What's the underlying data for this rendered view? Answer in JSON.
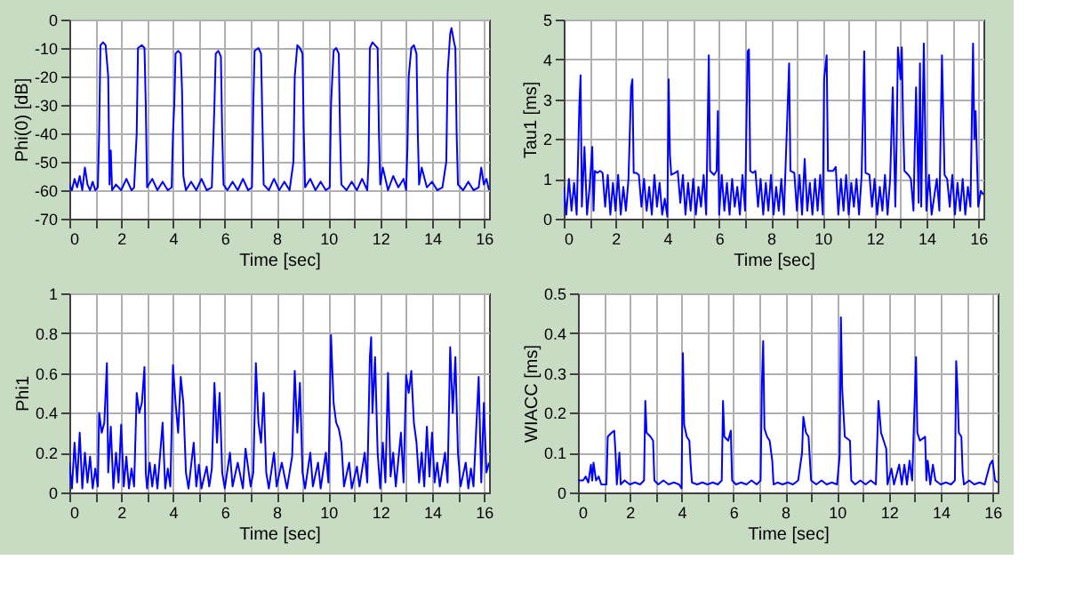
{
  "chart_data": [
    {
      "type": "line",
      "xlabel": "Time [sec]",
      "ylabel": "Phi(0) [dB]",
      "xlim": [
        0,
        16.2
      ],
      "ylim": [
        -70,
        0
      ],
      "grid": true,
      "xticks": [
        0,
        {
          "value": 1,
          "label": null
        },
        2,
        {
          "value": 3,
          "label": null
        },
        4,
        {
          "value": 5,
          "label": null
        },
        6,
        {
          "value": 7,
          "label": null
        },
        8,
        {
          "value": 9,
          "label": null
        },
        10,
        {
          "value": 11,
          "label": null
        },
        12,
        {
          "value": 13,
          "label": null
        },
        14,
        {
          "value": 15,
          "label": null
        },
        16
      ],
      "yticks": [
        -70,
        -60,
        -50,
        -40,
        -30,
        -20,
        -10,
        0
      ],
      "series": [
        {
          "color": "#0000ff",
          "x": [
            0,
            0.1,
            0.2,
            0.3,
            0.4,
            0.5,
            0.6,
            0.7,
            0.8,
            0.9,
            1.0,
            1.1,
            1.15,
            1.2,
            1.3,
            1.4,
            1.5,
            1.55,
            1.6,
            1.65,
            1.8,
            2.0,
            2.2,
            2.4,
            2.5,
            2.6,
            2.65,
            2.8,
            2.9,
            2.95,
            3.0,
            3.2,
            3.4,
            3.6,
            3.8,
            3.95,
            4.0,
            4.05,
            4.1,
            4.2,
            4.3,
            4.35,
            4.4,
            4.5,
            4.7,
            4.9,
            5.1,
            5.3,
            5.5,
            5.6,
            5.65,
            5.75,
            5.85,
            5.9,
            5.95,
            6.1,
            6.3,
            6.5,
            6.7,
            6.9,
            7.05,
            7.1,
            7.15,
            7.3,
            7.4,
            7.45,
            7.5,
            7.7,
            7.9,
            8.1,
            8.3,
            8.5,
            8.65,
            8.7,
            8.8,
            8.9,
            9.0,
            9.05,
            9.1,
            9.3,
            9.5,
            9.7,
            9.9,
            10.05,
            10.1,
            10.2,
            10.3,
            10.4,
            10.45,
            10.5,
            10.7,
            10.9,
            11.1,
            11.3,
            11.5,
            11.55,
            11.6,
            11.7,
            11.8,
            11.9,
            11.95,
            12.0,
            12.1,
            12.3,
            12.5,
            12.7,
            12.9,
            13.0,
            13.05,
            13.1,
            13.2,
            13.3,
            13.4,
            13.45,
            13.5,
            13.6,
            13.8,
            14.0,
            14.2,
            14.4,
            14.55,
            14.6,
            14.7,
            14.75,
            14.85,
            14.9,
            14.95,
            15.0,
            15.2,
            15.4,
            15.6,
            15.8,
            15.9,
            16.0,
            16.1,
            16.2
          ],
          "values": [
            -58,
            -60,
            -56,
            -59,
            -55,
            -60,
            -52,
            -58,
            -60,
            -57,
            -60,
            -59,
            -40,
            -9,
            -8,
            -9,
            -20,
            -58,
            -46,
            -60,
            -58,
            -60,
            -56,
            -60,
            -59,
            -40,
            -10,
            -9,
            -10,
            -30,
            -59,
            -56,
            -60,
            -57,
            -60,
            -59,
            -40,
            -30,
            -12,
            -11,
            -12,
            -25,
            -55,
            -60,
            -57,
            -60,
            -56,
            -60,
            -59,
            -30,
            -12,
            -11,
            -13,
            -40,
            -58,
            -60,
            -57,
            -60,
            -56,
            -60,
            -59,
            -30,
            -11,
            -10,
            -12,
            -35,
            -58,
            -60,
            -56,
            -60,
            -57,
            -60,
            -50,
            -20,
            -9,
            -10,
            -12,
            -40,
            -59,
            -56,
            -60,
            -57,
            -60,
            -59,
            -30,
            -11,
            -10,
            -12,
            -40,
            -58,
            -60,
            -57,
            -60,
            -56,
            -60,
            -50,
            -10,
            -8,
            -9,
            -10,
            -40,
            -58,
            -52,
            -60,
            -55,
            -59,
            -56,
            -60,
            -45,
            -20,
            -10,
            -9,
            -12,
            -40,
            -58,
            -52,
            -59,
            -57,
            -60,
            -59,
            -50,
            -19,
            -5,
            -3,
            -8,
            -10,
            -40,
            -58,
            -60,
            -57,
            -60,
            -59,
            -52,
            -58,
            -56,
            -60
          ]
        }
      ]
    },
    {
      "type": "line",
      "xlabel": "Time [sec]",
      "ylabel": "Tau1 [ms]",
      "xlim": [
        0,
        16.2
      ],
      "ylim": [
        0,
        5
      ],
      "grid": true,
      "xticks": [
        0,
        {
          "value": 1,
          "label": null
        },
        2,
        {
          "value": 3,
          "label": null
        },
        4,
        {
          "value": 5,
          "label": null
        },
        6,
        {
          "value": 7,
          "label": null
        },
        8,
        {
          "value": 9,
          "label": null
        },
        10,
        {
          "value": 11,
          "label": null
        },
        12,
        {
          "value": 13,
          "label": null
        },
        14,
        {
          "value": 15,
          "label": null
        },
        16
      ],
      "yticks": [
        0,
        1,
        2,
        3,
        4,
        5
      ],
      "series": [
        {
          "color": "#0000ff",
          "x": [
            0,
            0.1,
            0.2,
            0.3,
            0.4,
            0.5,
            0.6,
            0.65,
            0.7,
            0.8,
            0.9,
            1.0,
            1.1,
            1.15,
            1.2,
            1.3,
            1.4,
            1.5,
            1.6,
            1.7,
            1.8,
            1.9,
            2.0,
            2.1,
            2.2,
            2.3,
            2.4,
            2.5,
            2.6,
            2.65,
            2.7,
            2.8,
            2.9,
            3.0,
            3.1,
            3.2,
            3.3,
            3.4,
            3.5,
            3.6,
            3.7,
            3.8,
            3.9,
            4.0,
            4.05,
            4.1,
            4.15,
            4.3,
            4.4,
            4.5,
            4.6,
            4.7,
            4.8,
            4.9,
            5.0,
            5.1,
            5.2,
            5.3,
            5.4,
            5.5,
            5.6,
            5.65,
            5.8,
            5.9,
            5.95,
            6.0,
            6.1,
            6.2,
            6.3,
            6.4,
            6.5,
            6.6,
            6.7,
            6.8,
            6.9,
            7.0,
            7.1,
            7.15,
            7.2,
            7.3,
            7.4,
            7.5,
            7.6,
            7.7,
            7.8,
            7.9,
            8.0,
            8.1,
            8.2,
            8.3,
            8.4,
            8.5,
            8.7,
            8.75,
            8.9,
            9.0,
            9.1,
            9.2,
            9.3,
            9.4,
            9.5,
            9.6,
            9.7,
            9.8,
            9.9,
            10.0,
            10.05,
            10.15,
            10.2,
            10.4,
            10.5,
            10.6,
            10.7,
            10.8,
            10.9,
            11.0,
            11.1,
            11.2,
            11.3,
            11.4,
            11.5,
            11.6,
            11.65,
            11.8,
            11.9,
            12.0,
            12.1,
            12.2,
            12.3,
            12.4,
            12.5,
            12.6,
            12.7,
            12.8,
            12.85,
            12.9,
            13.0,
            13.05,
            13.1,
            13.15,
            13.3,
            13.4,
            13.5,
            13.6,
            13.7,
            13.75,
            13.8,
            13.9,
            14.0,
            14.1,
            14.2,
            14.4,
            14.5,
            14.6,
            14.65,
            14.7,
            14.8,
            14.9,
            15.0,
            15.1,
            15.2,
            15.3,
            15.4,
            15.5,
            15.6,
            15.7,
            15.8,
            15.85,
            15.9,
            16.0,
            16.1,
            16.2
          ],
          "values": [
            0.8,
            0.1,
            1.0,
            0.2,
            0.9,
            0.1,
            2.8,
            3.6,
            0.3,
            1.8,
            0.1,
            0.8,
            1.8,
            0.2,
            1.2,
            1.15,
            1.2,
            1.15,
            0.3,
            1.1,
            0.1,
            0.9,
            0.2,
            1.1,
            0.1,
            0.8,
            0.2,
            1.0,
            3.3,
            3.5,
            1.15,
            1.15,
            1.1,
            0.3,
            1.0,
            0.2,
            0.8,
            0.1,
            1.1,
            0.3,
            0.9,
            0.1,
            0.5,
            0.05,
            3.5,
            1.6,
            1.1,
            1.15,
            1.2,
            0.4,
            1.1,
            0.1,
            0.9,
            0.2,
            1.0,
            0.1,
            0.8,
            0.3,
            1.1,
            0.1,
            4.1,
            1.2,
            1.1,
            1.2,
            2.7,
            0.1,
            1.1,
            0.2,
            0.9,
            0.1,
            1.0,
            0.3,
            0.8,
            0.1,
            1.1,
            0.2,
            4.2,
            4.25,
            1.2,
            1.15,
            1.2,
            0.3,
            1.0,
            0.1,
            0.9,
            0.2,
            1.1,
            0.1,
            0.8,
            0.2,
            1.0,
            0.1,
            3.9,
            1.2,
            1.15,
            0.2,
            1.1,
            0.1,
            1.5,
            0.2,
            0.9,
            0.1,
            1.0,
            0.2,
            1.1,
            0.1,
            3.5,
            4.1,
            1.2,
            1.2,
            1.3,
            0.1,
            1.0,
            0.2,
            1.1,
            0.1,
            0.9,
            0.3,
            1.0,
            0.1,
            1.1,
            4.2,
            1.15,
            1.1,
            0.3,
            1.0,
            0.1,
            0.8,
            0.2,
            1.1,
            0.1,
            1.0,
            3.3,
            0.3,
            1.9,
            4.3,
            3.5,
            4.3,
            2.4,
            1.2,
            1.1,
            1.0,
            0.2,
            3.3,
            0.4,
            3.9,
            0.3,
            4.4,
            0.2,
            1.1,
            0.1,
            1.0,
            0.2,
            4.1,
            2.6,
            1.1,
            1.0,
            0.3,
            1.1,
            0.1,
            0.9,
            0.2,
            1.0,
            0.1,
            0.8,
            0.3,
            4.4,
            2.0,
            2.7,
            0.3,
            0.7,
            0.6
          ]
        }
      ]
    },
    {
      "type": "line",
      "xlabel": "Time [sec]",
      "ylabel": "Phi1",
      "xlim": [
        0,
        16.2
      ],
      "ylim": [
        0,
        1
      ],
      "grid": true,
      "xticks": [
        0,
        {
          "value": 1,
          "label": null
        },
        2,
        {
          "value": 3,
          "label": null
        },
        4,
        {
          "value": 5,
          "label": null
        },
        6,
        {
          "value": 7,
          "label": null
        },
        8,
        {
          "value": 9,
          "label": null
        },
        10,
        {
          "value": 11,
          "label": null
        },
        12,
        {
          "value": 13,
          "label": null
        },
        14,
        {
          "value": 15,
          "label": null
        },
        16
      ],
      "yticks": [
        0,
        0.2,
        0.4,
        0.6,
        0.8,
        1
      ],
      "series": [
        {
          "color": "#0000ff",
          "x": [
            0,
            0.1,
            0.2,
            0.3,
            0.4,
            0.5,
            0.6,
            0.7,
            0.8,
            0.9,
            1.0,
            1.1,
            1.15,
            1.25,
            1.35,
            1.45,
            1.5,
            1.6,
            1.7,
            1.8,
            1.9,
            2.0,
            2.1,
            2.2,
            2.3,
            2.4,
            2.5,
            2.6,
            2.7,
            2.8,
            2.9,
            2.95,
            3.0,
            3.1,
            3.2,
            3.3,
            3.4,
            3.6,
            3.7,
            3.8,
            3.9,
            4.0,
            4.1,
            4.2,
            4.3,
            4.4,
            4.5,
            4.6,
            4.8,
            4.9,
            5.0,
            5.1,
            5.3,
            5.4,
            5.5,
            5.6,
            5.7,
            5.8,
            5.9,
            6.0,
            6.2,
            6.3,
            6.5,
            6.7,
            6.8,
            7.0,
            7.1,
            7.2,
            7.3,
            7.4,
            7.5,
            7.6,
            7.7,
            7.9,
            8.0,
            8.2,
            8.4,
            8.6,
            8.7,
            8.8,
            8.9,
            9.0,
            9.1,
            9.3,
            9.4,
            9.6,
            9.7,
            9.9,
            10.0,
            10.1,
            10.2,
            10.3,
            10.4,
            10.5,
            10.6,
            10.8,
            10.9,
            11.1,
            11.2,
            11.4,
            11.5,
            11.6,
            11.65,
            11.7,
            11.8,
            11.9,
            12.0,
            12.1,
            12.2,
            12.3,
            12.4,
            12.5,
            12.6,
            12.8,
            12.9,
            13.0,
            13.1,
            13.2,
            13.3,
            13.4,
            13.5,
            13.6,
            13.7,
            13.8,
            13.9,
            14.0,
            14.1,
            14.2,
            14.3,
            14.5,
            14.6,
            14.7,
            14.8,
            14.9,
            15.0,
            15.1,
            15.3,
            15.4,
            15.5,
            15.6,
            15.8,
            15.9,
            16.0,
            16.1,
            16.2
          ],
          "values": [
            0.15,
            0.02,
            0.25,
            0.05,
            0.3,
            0.02,
            0.2,
            0.05,
            0.18,
            0.02,
            0.12,
            0.03,
            0.4,
            0.3,
            0.35,
            0.65,
            0.1,
            0.33,
            0.02,
            0.2,
            0.05,
            0.34,
            0.03,
            0.18,
            0.02,
            0.12,
            0.03,
            0.5,
            0.4,
            0.45,
            0.63,
            0.1,
            0.02,
            0.15,
            0.03,
            0.14,
            0.02,
            0.35,
            0.02,
            0.12,
            0.03,
            0.64,
            0.45,
            0.3,
            0.58,
            0.45,
            0.1,
            0.02,
            0.25,
            0.03,
            0.14,
            0.02,
            0.13,
            0.03,
            0.12,
            0.55,
            0.25,
            0.5,
            0.1,
            0.02,
            0.2,
            0.03,
            0.15,
            0.02,
            0.22,
            0.03,
            0.1,
            0.65,
            0.35,
            0.25,
            0.5,
            0.1,
            0.02,
            0.2,
            0.03,
            0.15,
            0.02,
            0.18,
            0.61,
            0.3,
            0.55,
            0.1,
            0.02,
            0.2,
            0.03,
            0.15,
            0.02,
            0.2,
            0.05,
            0.79,
            0.45,
            0.35,
            0.32,
            0.25,
            0.03,
            0.15,
            0.02,
            0.13,
            0.03,
            0.2,
            0.05,
            0.68,
            0.78,
            0.4,
            0.68,
            0.2,
            0.02,
            0.25,
            0.05,
            0.6,
            0.08,
            0.2,
            0.03,
            0.3,
            0.05,
            0.59,
            0.5,
            0.61,
            0.35,
            0.25,
            0.05,
            0.2,
            0.03,
            0.33,
            0.08,
            0.3,
            0.05,
            0.15,
            0.03,
            0.2,
            0.05,
            0.73,
            0.4,
            0.68,
            0.2,
            0.03,
            0.15,
            0.02,
            0.12,
            0.03,
            0.58,
            0.05,
            0.45,
            0.1,
            0.15
          ]
        }
      ]
    },
    {
      "type": "line",
      "xlabel": "Time [sec]",
      "ylabel": "WIACC [ms]",
      "xlim": [
        0,
        16.2
      ],
      "ylim": [
        0,
        0.5
      ],
      "grid": true,
      "xticks": [
        0,
        {
          "value": 1,
          "label": null
        },
        2,
        {
          "value": 3,
          "label": null
        },
        4,
        {
          "value": 5,
          "label": null
        },
        6,
        {
          "value": 7,
          "label": null
        },
        8,
        {
          "value": 9,
          "label": null
        },
        10,
        {
          "value": 11,
          "label": null
        },
        12,
        {
          "value": 13,
          "label": null
        },
        14,
        {
          "value": 15,
          "label": null
        },
        16
      ],
      "yticks": [
        0,
        0.1,
        0.2,
        0.3,
        0.4,
        0.5
      ],
      "series": [
        {
          "color": "#0000ff",
          "x": [
            0,
            0.2,
            0.3,
            0.4,
            0.5,
            0.55,
            0.6,
            0.7,
            0.8,
            0.9,
            1.1,
            1.15,
            1.3,
            1.4,
            1.45,
            1.5,
            1.6,
            1.65,
            1.8,
            2.0,
            2.2,
            2.4,
            2.55,
            2.6,
            2.65,
            2.8,
            2.9,
            2.95,
            3.1,
            3.3,
            3.5,
            3.7,
            3.9,
            4.0,
            4.05,
            4.1,
            4.2,
            4.3,
            4.35,
            4.4,
            4.6,
            4.8,
            5.0,
            5.2,
            5.4,
            5.55,
            5.6,
            5.65,
            5.8,
            5.9,
            5.95,
            6.1,
            6.3,
            6.5,
            6.7,
            6.9,
            7.05,
            7.1,
            7.15,
            7.2,
            7.3,
            7.4,
            7.5,
            7.55,
            7.7,
            7.9,
            8.1,
            8.3,
            8.5,
            8.65,
            8.7,
            8.8,
            8.9,
            9.0,
            9.2,
            9.4,
            9.6,
            9.8,
            10.0,
            10.1,
            10.15,
            10.2,
            10.3,
            10.5,
            10.55,
            10.7,
            10.9,
            11.1,
            11.3,
            11.5,
            11.6,
            11.7,
            11.8,
            11.9,
            11.95,
            12.1,
            12.2,
            12.4,
            12.5,
            12.6,
            12.7,
            12.8,
            12.9,
            13.05,
            13.1,
            13.2,
            13.4,
            13.45,
            13.5,
            13.6,
            13.7,
            13.8,
            14.0,
            14.2,
            14.4,
            14.55,
            14.6,
            14.65,
            14.7,
            14.8,
            14.85,
            14.9,
            15.1,
            15.3,
            15.5,
            15.7,
            15.9,
            16.0,
            16.1,
            16.2
          ],
          "values": [
            0.03,
            0.03,
            0.04,
            0.025,
            0.07,
            0.03,
            0.075,
            0.03,
            0.04,
            0.02,
            0.02,
            0.14,
            0.15,
            0.155,
            0.1,
            0.02,
            0.1,
            0.02,
            0.03,
            0.02,
            0.025,
            0.02,
            0.03,
            0.23,
            0.15,
            0.14,
            0.13,
            0.03,
            0.02,
            0.03,
            0.02,
            0.025,
            0.02,
            0.01,
            0.35,
            0.17,
            0.14,
            0.13,
            0.07,
            0.025,
            0.02,
            0.025,
            0.02,
            0.025,
            0.02,
            0.03,
            0.23,
            0.14,
            0.13,
            0.155,
            0.03,
            0.02,
            0.025,
            0.02,
            0.03,
            0.02,
            0.03,
            0.27,
            0.38,
            0.16,
            0.14,
            0.13,
            0.08,
            0.02,
            0.025,
            0.02,
            0.025,
            0.02,
            0.03,
            0.1,
            0.19,
            0.15,
            0.14,
            0.03,
            0.02,
            0.03,
            0.02,
            0.025,
            0.02,
            0.09,
            0.44,
            0.26,
            0.14,
            0.13,
            0.03,
            0.02,
            0.03,
            0.02,
            0.03,
            0.02,
            0.23,
            0.15,
            0.13,
            0.11,
            0.02,
            0.06,
            0.02,
            0.07,
            0.02,
            0.07,
            0.02,
            0.08,
            0.03,
            0.34,
            0.15,
            0.13,
            0.14,
            0.03,
            0.08,
            0.02,
            0.07,
            0.03,
            0.02,
            0.025,
            0.02,
            0.03,
            0.33,
            0.26,
            0.15,
            0.14,
            0.05,
            0.02,
            0.03,
            0.02,
            0.025,
            0.02,
            0.07,
            0.08,
            0.03,
            0.025
          ]
        }
      ]
    }
  ]
}
